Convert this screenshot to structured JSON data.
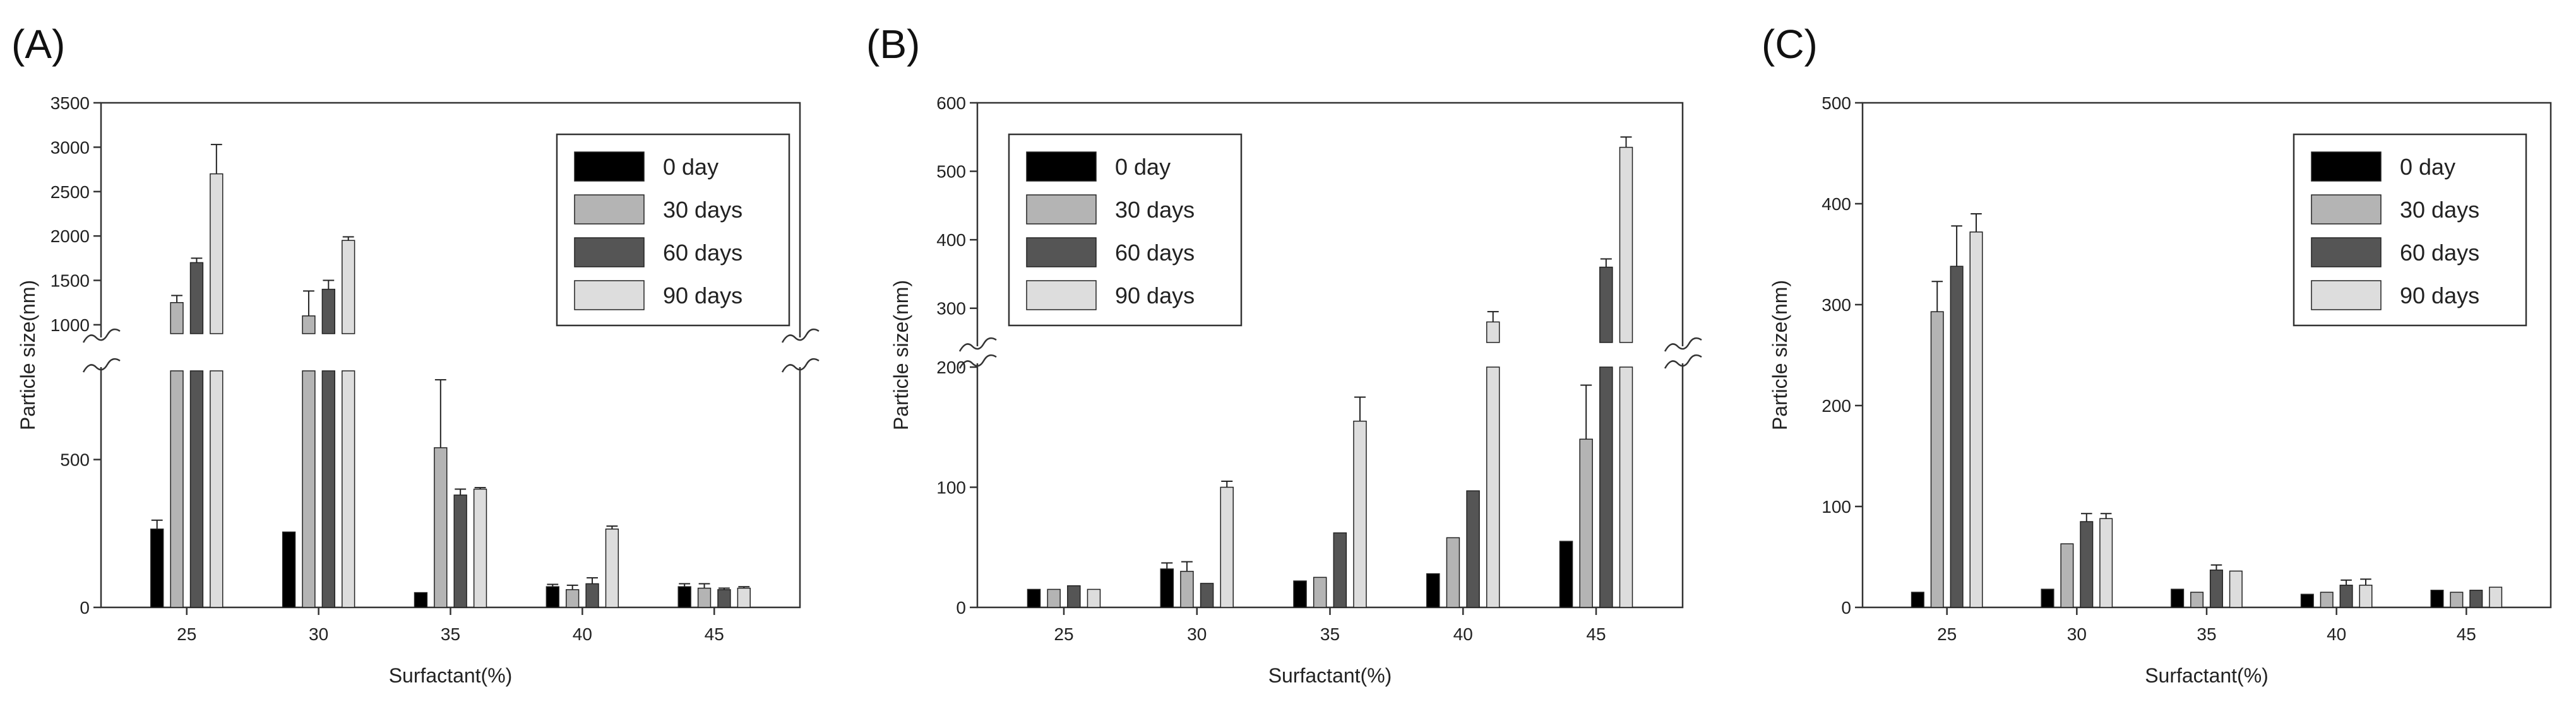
{
  "colors": {
    "series": [
      "#000000",
      "#b4b4b4",
      "#555555",
      "#dddddd"
    ],
    "axis": "#333333",
    "background": "#ffffff"
  },
  "chart_data": [
    {
      "panel_label": "(A)",
      "type": "bar",
      "xlabel": "Surfactant(%)",
      "ylabel": "Particle size(nm)",
      "categories": [
        "25",
        "30",
        "35",
        "40",
        "45"
      ],
      "legend": {
        "position": "top-right",
        "entries": [
          "0 day",
          "30 days",
          "60 days",
          "90 days"
        ]
      },
      "y_break": {
        "lower_range": [
          0,
          800
        ],
        "upper_range": [
          900,
          3500
        ]
      },
      "lower_ticks": [
        "0",
        "500"
      ],
      "upper_ticks": [
        "1000",
        "1500",
        "2000",
        "2500",
        "3000",
        "3500"
      ],
      "series": [
        {
          "name": "0 day",
          "values": [
            265,
            255,
            50,
            70,
            70
          ],
          "errors": [
            30,
            0,
            0,
            8,
            10
          ]
        },
        {
          "name": "30 days",
          "values": [
            1250,
            1100,
            540,
            60,
            65
          ],
          "errors": [
            80,
            280,
            230,
            15,
            15
          ]
        },
        {
          "name": "60 days",
          "values": [
            1700,
            1400,
            380,
            80,
            60
          ],
          "errors": [
            50,
            100,
            20,
            20,
            5
          ]
        },
        {
          "name": "90 days",
          "values": [
            2700,
            1950,
            400,
            265,
            65
          ],
          "errors": [
            330,
            40,
            5,
            10,
            5
          ]
        }
      ]
    },
    {
      "panel_label": "(B)",
      "type": "bar",
      "xlabel": "Surfactant(%)",
      "ylabel": "Particle size(nm)",
      "categories": [
        "25",
        "30",
        "35",
        "40",
        "45"
      ],
      "legend": {
        "position": "top-left",
        "entries": [
          "0 day",
          "30 days",
          "60 days",
          "90 days"
        ]
      },
      "y_break": {
        "lower_range": [
          0,
          200
        ],
        "upper_range": [
          250,
          600
        ]
      },
      "lower_ticks": [
        "0",
        "100",
        "200"
      ],
      "upper_ticks": [
        "300",
        "400",
        "500",
        "600"
      ],
      "series": [
        {
          "name": "0 day",
          "values": [
            15,
            32,
            22,
            28,
            55
          ],
          "errors": [
            0,
            5,
            0,
            0,
            0
          ]
        },
        {
          "name": "30 days",
          "values": [
            15,
            30,
            25,
            58,
            140
          ],
          "errors": [
            0,
            8,
            0,
            0,
            45
          ]
        },
        {
          "name": "60 days",
          "values": [
            18,
            20,
            62,
            97,
            360
          ],
          "errors": [
            0,
            0,
            0,
            0,
            12
          ]
        },
        {
          "name": "90 days",
          "values": [
            15,
            100,
            155,
            280,
            535
          ],
          "errors": [
            0,
            5,
            20,
            15,
            15
          ]
        }
      ]
    },
    {
      "panel_label": "(C)",
      "type": "bar",
      "xlabel": "Surfactant(%)",
      "ylabel": "Particle size(nm)",
      "categories": [
        "25",
        "30",
        "35",
        "40",
        "45"
      ],
      "legend": {
        "position": "top-right",
        "entries": [
          "0 day",
          "30 days",
          "60 days",
          "90 days"
        ]
      },
      "ylim": [
        0,
        500
      ],
      "ticks": [
        "0",
        "100",
        "200",
        "300",
        "400",
        "500"
      ],
      "series": [
        {
          "name": "0 day",
          "values": [
            15,
            18,
            18,
            13,
            17
          ],
          "errors": [
            0,
            0,
            0,
            0,
            0
          ]
        },
        {
          "name": "30 days",
          "values": [
            293,
            63,
            15,
            15,
            15
          ],
          "errors": [
            30,
            0,
            0,
            0,
            0
          ]
        },
        {
          "name": "60 days",
          "values": [
            338,
            85,
            37,
            22,
            17
          ],
          "errors": [
            40,
            8,
            5,
            5,
            0
          ]
        },
        {
          "name": "90 days",
          "values": [
            372,
            88,
            36,
            22,
            20
          ],
          "errors": [
            18,
            5,
            0,
            6,
            0
          ]
        }
      ]
    }
  ]
}
